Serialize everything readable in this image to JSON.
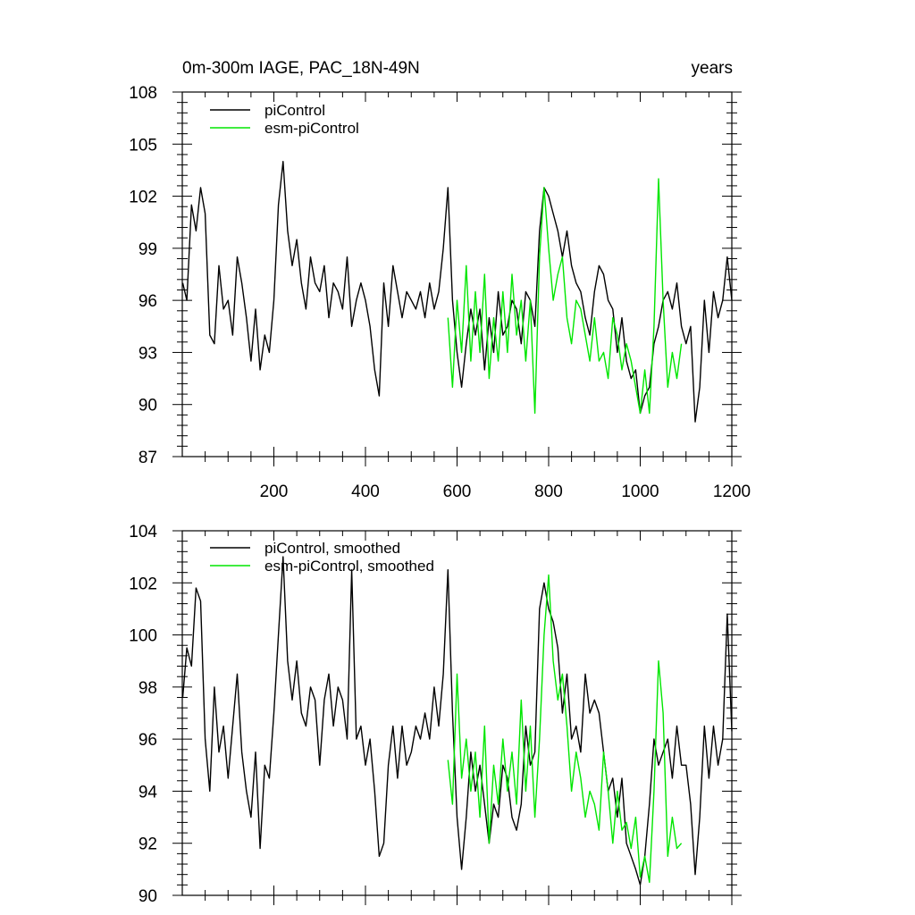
{
  "chart_data": [
    {
      "type": "line",
      "title_left": "0m-300m IAGE, PAC_18N-49N",
      "title_right": "years",
      "xlim": [
        0,
        1200
      ],
      "ylim": [
        87,
        108
      ],
      "x_ticks": [
        200,
        400,
        600,
        800,
        1000,
        1200
      ],
      "y_ticks": [
        87,
        90,
        93,
        96,
        99,
        102,
        105,
        108
      ],
      "x_labels_shown": true,
      "legend": "top-left",
      "series": [
        {
          "name": "piControl",
          "color": "#000000",
          "x": [
            1,
            10,
            20,
            30,
            40,
            50,
            60,
            70,
            80,
            90,
            100,
            110,
            120,
            130,
            140,
            150,
            160,
            170,
            180,
            190,
            200,
            210,
            220,
            230,
            240,
            250,
            260,
            270,
            280,
            290,
            300,
            310,
            320,
            330,
            340,
            350,
            360,
            370,
            380,
            390,
            400,
            410,
            420,
            430,
            440,
            450,
            460,
            470,
            480,
            490,
            500,
            510,
            520,
            530,
            540,
            550,
            560,
            570,
            580,
            590,
            600,
            610,
            620,
            630,
            640,
            650,
            660,
            670,
            680,
            690,
            700,
            710,
            720,
            730,
            740,
            750,
            760,
            770,
            780,
            790,
            800,
            810,
            820,
            830,
            840,
            850,
            860,
            870,
            880,
            890,
            900,
            910,
            920,
            930,
            940,
            950,
            960,
            970,
            980,
            990,
            1000,
            1010,
            1020,
            1030,
            1040,
            1050,
            1060,
            1070,
            1080,
            1090,
            1100,
            1110,
            1120,
            1130,
            1140,
            1150,
            1160,
            1170,
            1180,
            1190,
            1200
          ],
          "values": [
            97.0,
            96.0,
            101.5,
            100.0,
            102.5,
            101.0,
            94.0,
            93.5,
            98.0,
            95.5,
            96.0,
            94.0,
            98.5,
            97.0,
            95.0,
            92.5,
            95.5,
            92.0,
            94.0,
            93.0,
            96.0,
            101.5,
            104.0,
            100.0,
            98.0,
            99.5,
            97.0,
            95.5,
            98.5,
            97.0,
            96.5,
            98.0,
            95.0,
            97.0,
            96.5,
            95.5,
            98.5,
            94.5,
            96.0,
            97.0,
            96.0,
            94.5,
            92.0,
            90.5,
            97.0,
            94.5,
            98.0,
            96.5,
            95.0,
            96.5,
            96.0,
            95.5,
            96.5,
            95.0,
            97.0,
            95.5,
            96.5,
            99.0,
            102.5,
            96.0,
            93.0,
            91.0,
            93.5,
            95.5,
            94.0,
            95.5,
            92.0,
            95.0,
            93.0,
            96.5,
            94.0,
            94.5,
            96.0,
            95.5,
            93.5,
            96.5,
            96.0,
            94.5,
            100.0,
            102.5,
            102.0,
            101.0,
            100.0,
            98.5,
            100.0,
            98.0,
            97.0,
            96.5,
            95.0,
            94.0,
            96.5,
            98.0,
            97.5,
            96.0,
            95.5,
            93.0,
            95.0,
            92.5,
            91.5,
            92.0,
            89.5,
            90.5,
            91.0,
            93.5,
            94.5,
            96.0,
            96.5,
            95.5,
            97.0,
            94.5,
            93.5,
            94.5,
            89.0,
            91.0,
            96.0,
            93.0,
            96.5,
            95.0,
            96.0,
            98.5,
            96.0
          ]
        },
        {
          "name": "esm-piControl",
          "color": "#00e600",
          "x": [
            580,
            590,
            600,
            610,
            620,
            630,
            640,
            650,
            660,
            670,
            680,
            690,
            700,
            710,
            720,
            730,
            740,
            750,
            760,
            770,
            780,
            790,
            800,
            810,
            820,
            830,
            840,
            850,
            860,
            870,
            880,
            890,
            900,
            910,
            920,
            930,
            940,
            950,
            960,
            970,
            980,
            990,
            1000,
            1010,
            1020,
            1030,
            1040,
            1050,
            1060,
            1070,
            1080,
            1090
          ],
          "values": [
            95.0,
            91.0,
            96.0,
            93.0,
            98.0,
            92.5,
            96.5,
            93.0,
            97.5,
            91.5,
            95.0,
            92.5,
            96.5,
            93.0,
            97.5,
            94.0,
            96.0,
            92.5,
            96.0,
            89.5,
            98.5,
            102.5,
            99.0,
            96.0,
            97.5,
            98.5,
            95.0,
            93.5,
            96.0,
            95.5,
            94.0,
            92.5,
            95.0,
            92.5,
            93.0,
            91.5,
            95.0,
            94.0,
            92.0,
            93.5,
            92.5,
            91.0,
            89.5,
            92.0,
            89.5,
            94.5,
            103.0,
            96.0,
            91.0,
            93.0,
            91.5,
            93.5
          ]
        }
      ]
    },
    {
      "type": "line",
      "xlim": [
        0,
        1200
      ],
      "ylim": [
        90,
        104
      ],
      "x_ticks": [
        200,
        400,
        600,
        800,
        1000,
        1200
      ],
      "y_ticks": [
        90,
        92,
        94,
        96,
        98,
        100,
        102,
        104
      ],
      "x_labels_shown": false,
      "legend": "top-left",
      "series": [
        {
          "name": "piControl, smoothed",
          "color": "#000000",
          "x": [
            1,
            10,
            20,
            30,
            40,
            50,
            60,
            70,
            80,
            90,
            100,
            110,
            120,
            130,
            140,
            150,
            160,
            170,
            180,
            190,
            200,
            210,
            220,
            230,
            240,
            250,
            260,
            270,
            280,
            290,
            300,
            310,
            320,
            330,
            340,
            350,
            360,
            370,
            380,
            390,
            400,
            410,
            420,
            430,
            440,
            450,
            460,
            470,
            480,
            490,
            500,
            510,
            520,
            530,
            540,
            550,
            560,
            570,
            580,
            590,
            600,
            610,
            620,
            630,
            640,
            650,
            660,
            670,
            680,
            690,
            700,
            710,
            720,
            730,
            740,
            750,
            760,
            770,
            780,
            790,
            800,
            810,
            820,
            830,
            840,
            850,
            860,
            870,
            880,
            890,
            900,
            910,
            920,
            930,
            940,
            950,
            960,
            970,
            980,
            990,
            1000,
            1010,
            1020,
            1030,
            1040,
            1050,
            1060,
            1070,
            1080,
            1090,
            1100,
            1110,
            1120,
            1130,
            1140,
            1150,
            1160,
            1170,
            1180,
            1190,
            1200
          ],
          "values": [
            97.6,
            99.5,
            98.8,
            101.8,
            101.3,
            96.0,
            94.0,
            98.0,
            95.5,
            96.5,
            94.5,
            96.5,
            98.5,
            95.5,
            94.0,
            93.0,
            95.5,
            91.8,
            95.0,
            94.5,
            97.0,
            100.0,
            103.0,
            99.0,
            97.5,
            99.0,
            97.0,
            96.5,
            98.0,
            97.5,
            95.0,
            97.5,
            98.5,
            96.5,
            98.0,
            97.5,
            96.0,
            102.5,
            96.0,
            96.5,
            95.0,
            96.0,
            94.0,
            91.5,
            92.0,
            95.0,
            96.5,
            94.5,
            96.5,
            95.0,
            95.5,
            96.5,
            96.0,
            97.0,
            96.0,
            98.0,
            96.5,
            98.5,
            102.5,
            97.0,
            93.0,
            91.0,
            93.0,
            95.5,
            94.0,
            95.0,
            93.5,
            92.0,
            93.5,
            93.0,
            95.0,
            94.5,
            93.0,
            92.5,
            93.5,
            96.5,
            95.0,
            95.5,
            101.0,
            102.0,
            101.0,
            100.5,
            99.5,
            97.0,
            98.5,
            96.0,
            96.5,
            95.5,
            98.5,
            97.0,
            97.5,
            97.0,
            95.5,
            94.0,
            94.5,
            93.0,
            94.5,
            92.0,
            91.5,
            91.0,
            90.4,
            91.5,
            93.5,
            96.0,
            95.0,
            95.5,
            96.0,
            94.5,
            96.5,
            95.0,
            95.0,
            93.5,
            90.8,
            93.0,
            96.5,
            94.5,
            96.5,
            95.0,
            96.0,
            100.8,
            96.3
          ]
        },
        {
          "name": "esm-piControl, smoothed",
          "color": "#00e600",
          "x": [
            580,
            590,
            600,
            610,
            620,
            630,
            640,
            650,
            660,
            670,
            680,
            690,
            700,
            710,
            720,
            730,
            740,
            750,
            760,
            770,
            780,
            790,
            800,
            810,
            820,
            830,
            840,
            850,
            860,
            870,
            880,
            890,
            900,
            910,
            920,
            930,
            940,
            950,
            960,
            970,
            980,
            990,
            1000,
            1010,
            1020,
            1030,
            1040,
            1050,
            1060,
            1070,
            1080,
            1090
          ],
          "values": [
            95.2,
            93.5,
            98.5,
            94.5,
            96.0,
            94.0,
            95.5,
            93.0,
            96.5,
            92.0,
            95.0,
            93.5,
            96.0,
            94.0,
            95.5,
            93.5,
            97.5,
            94.0,
            96.5,
            93.0,
            96.0,
            100.0,
            102.3,
            99.0,
            97.5,
            98.5,
            96.5,
            94.0,
            95.5,
            94.5,
            93.0,
            94.0,
            93.5,
            92.5,
            95.5,
            94.0,
            92.0,
            94.0,
            92.5,
            92.8,
            91.8,
            93.0,
            90.7,
            91.5,
            90.5,
            94.0,
            99.0,
            97.0,
            91.5,
            93.0,
            91.8,
            92.0
          ]
        }
      ]
    }
  ]
}
